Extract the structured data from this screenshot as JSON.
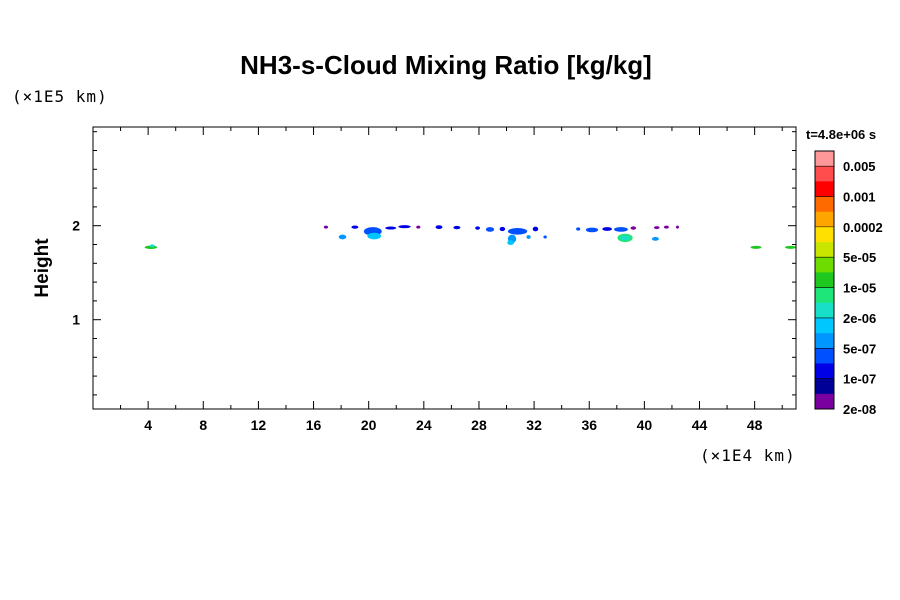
{
  "chart_data": {
    "type": "heatmap",
    "title": "NH3-s-Cloud Mixing Ratio [kg/kg]",
    "ylabel": "Height",
    "y_unit": "(×1E5 km)",
    "x_unit": "(×1E4 km)",
    "time_label": "t=4.8e+06 s",
    "xlim": [
      0,
      51
    ],
    "ylim": [
      0.05,
      3.05
    ],
    "x_ticks": [
      4,
      8,
      12,
      16,
      20,
      24,
      28,
      32,
      36,
      40,
      44,
      48
    ],
    "y_ticks": [
      1,
      2
    ],
    "colorbar": {
      "labels": [
        "0.005",
        "0.001",
        "0.0002",
        "5e-05",
        "1e-05",
        "2e-06",
        "5e-07",
        "1e-07",
        "2e-08"
      ],
      "colors": [
        "#ff9999",
        "#ff4d4d",
        "#ff0000",
        "#ff6a00",
        "#ffa500",
        "#ffe000",
        "#c8e600",
        "#6fdc00",
        "#1ec81e",
        "#1ee678",
        "#18e0c8",
        "#00c8ff",
        "#0096ff",
        "#0050ff",
        "#0000e6",
        "#000096",
        "#7a00a0"
      ]
    },
    "cloud_patches": [
      {
        "x": 4.2,
        "y": 1.77,
        "w": 0.9,
        "h": 0.035,
        "color": "#1ec81e"
      },
      {
        "x": 4.3,
        "y": 1.785,
        "w": 0.35,
        "h": 0.03,
        "color": "#18e0c8"
      },
      {
        "x": 16.9,
        "y": 1.985,
        "w": 0.3,
        "h": 0.025,
        "color": "#7a00a0"
      },
      {
        "x": 18.1,
        "y": 1.88,
        "w": 0.55,
        "h": 0.05,
        "color": "#0096ff"
      },
      {
        "x": 19.0,
        "y": 1.985,
        "w": 0.5,
        "h": 0.035,
        "color": "#0000e6"
      },
      {
        "x": 20.3,
        "y": 1.94,
        "w": 1.3,
        "h": 0.09,
        "color": "#0050ff"
      },
      {
        "x": 20.4,
        "y": 1.89,
        "w": 1.0,
        "h": 0.07,
        "color": "#00c8ff"
      },
      {
        "x": 21.6,
        "y": 1.975,
        "w": 0.8,
        "h": 0.03,
        "color": "#0000e6"
      },
      {
        "x": 22.6,
        "y": 1.99,
        "w": 0.9,
        "h": 0.025,
        "color": "#0000e6"
      },
      {
        "x": 23.6,
        "y": 1.985,
        "w": 0.3,
        "h": 0.03,
        "color": "#7a00a0"
      },
      {
        "x": 25.1,
        "y": 1.985,
        "w": 0.5,
        "h": 0.04,
        "color": "#0000e6"
      },
      {
        "x": 26.4,
        "y": 1.98,
        "w": 0.5,
        "h": 0.035,
        "color": "#0000e6"
      },
      {
        "x": 27.9,
        "y": 1.975,
        "w": 0.35,
        "h": 0.035,
        "color": "#0000e6"
      },
      {
        "x": 28.8,
        "y": 1.96,
        "w": 0.6,
        "h": 0.05,
        "color": "#0050ff"
      },
      {
        "x": 29.7,
        "y": 1.965,
        "w": 0.4,
        "h": 0.045,
        "color": "#0000e6"
      },
      {
        "x": 30.8,
        "y": 1.94,
        "w": 1.4,
        "h": 0.07,
        "color": "#0050ff"
      },
      {
        "x": 30.4,
        "y": 1.86,
        "w": 0.6,
        "h": 0.09,
        "color": "#0096ff"
      },
      {
        "x": 30.3,
        "y": 1.82,
        "w": 0.5,
        "h": 0.05,
        "color": "#00c8ff"
      },
      {
        "x": 32.1,
        "y": 1.965,
        "w": 0.4,
        "h": 0.05,
        "color": "#0000e6"
      },
      {
        "x": 31.6,
        "y": 1.88,
        "w": 0.3,
        "h": 0.04,
        "color": "#0096ff"
      },
      {
        "x": 32.8,
        "y": 1.88,
        "w": 0.25,
        "h": 0.03,
        "color": "#0050ff"
      },
      {
        "x": 35.2,
        "y": 1.965,
        "w": 0.3,
        "h": 0.035,
        "color": "#0050ff"
      },
      {
        "x": 36.2,
        "y": 1.955,
        "w": 0.9,
        "h": 0.05,
        "color": "#0050ff"
      },
      {
        "x": 37.3,
        "y": 1.965,
        "w": 0.7,
        "h": 0.04,
        "color": "#0000e6"
      },
      {
        "x": 38.3,
        "y": 1.96,
        "w": 1.0,
        "h": 0.05,
        "color": "#0050ff"
      },
      {
        "x": 38.6,
        "y": 1.87,
        "w": 1.1,
        "h": 0.09,
        "color": "#1ee678"
      },
      {
        "x": 38.6,
        "y": 1.87,
        "w": 0.7,
        "h": 0.05,
        "color": "#18e0c8"
      },
      {
        "x": 39.2,
        "y": 1.975,
        "w": 0.4,
        "h": 0.035,
        "color": "#7a00a0"
      },
      {
        "x": 40.8,
        "y": 1.86,
        "w": 0.5,
        "h": 0.04,
        "color": "#0096ff"
      },
      {
        "x": 40.9,
        "y": 1.98,
        "w": 0.4,
        "h": 0.025,
        "color": "#7a00a0"
      },
      {
        "x": 41.6,
        "y": 1.985,
        "w": 0.35,
        "h": 0.025,
        "color": "#7a00a0"
      },
      {
        "x": 42.4,
        "y": 1.985,
        "w": 0.2,
        "h": 0.02,
        "color": "#7a00a0"
      },
      {
        "x": 48.1,
        "y": 1.77,
        "w": 0.8,
        "h": 0.03,
        "color": "#1ec81e"
      },
      {
        "x": 50.6,
        "y": 1.77,
        "w": 0.8,
        "h": 0.03,
        "color": "#1ec81e"
      }
    ]
  }
}
